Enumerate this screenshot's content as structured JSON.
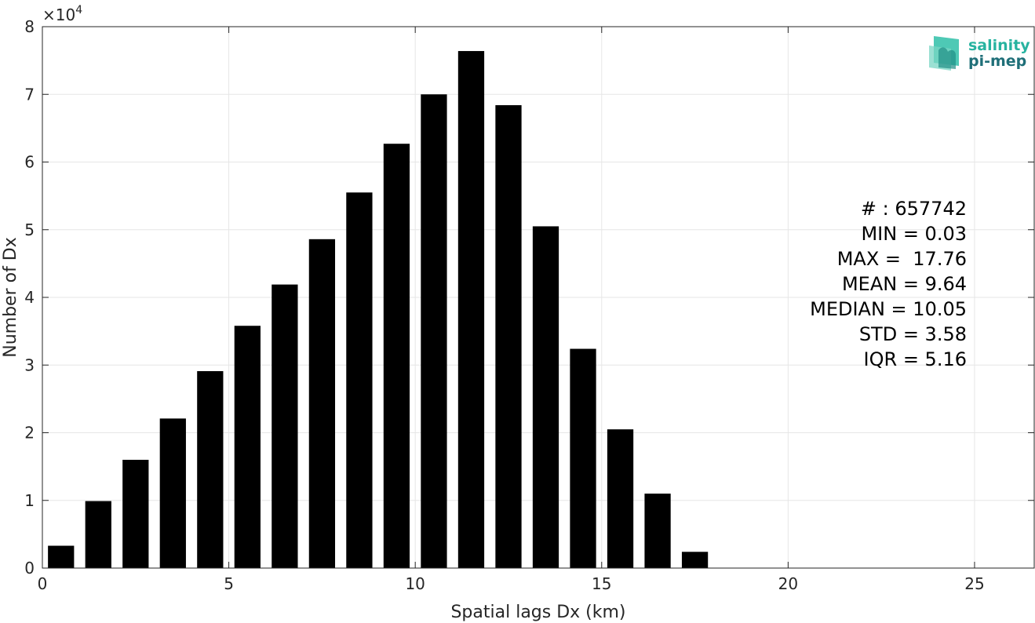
{
  "chart_data": {
    "type": "bar",
    "x": [
      0.5,
      1.5,
      2.5,
      3.5,
      4.5,
      5.5,
      6.5,
      7.5,
      8.5,
      9.5,
      10.5,
      11.5,
      12.5,
      13.5,
      14.5,
      15.5,
      16.5,
      17.5
    ],
    "values": [
      3300,
      9900,
      16000,
      22100,
      29100,
      35800,
      41900,
      48600,
      55500,
      62700,
      70000,
      76400,
      68400,
      50500,
      32400,
      20500,
      11000,
      2400
    ],
    "bar_width": 0.7,
    "bar_color": "#000000",
    "xlabel": "Spatial lags Dx (km)",
    "ylabel": "Number of Dx",
    "xlim": [
      0,
      26.6
    ],
    "ylim": [
      0,
      80000
    ],
    "xticks": [
      0,
      5,
      10,
      15,
      20,
      25
    ],
    "xtick_labels": [
      "0",
      "5",
      "10",
      "15",
      "20",
      "25"
    ],
    "yticks": [
      0,
      10000,
      20000,
      30000,
      40000,
      50000,
      60000,
      70000,
      80000
    ],
    "ytick_labels": [
      "0",
      "1",
      "2",
      "3",
      "4",
      "5",
      "6",
      "7",
      "8"
    ],
    "y_exponent": {
      "base": "×10",
      "power": "4"
    },
    "grid": true,
    "annotations": [
      "# : 657742",
      "MIN = 0.03",
      "MAX =  17.76",
      "MEAN = 9.64",
      "MEDIAN = 10.05",
      "STD = 3.58",
      "IQR = 5.16"
    ]
  },
  "logo": {
    "line1": "salinity",
    "line2": "pi-mep",
    "color1": "#27b3a0",
    "color2": "#1f6f78"
  }
}
